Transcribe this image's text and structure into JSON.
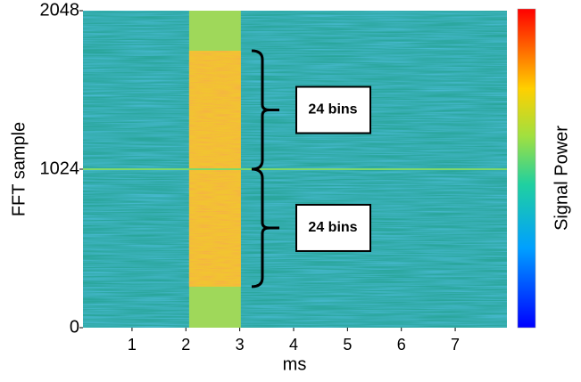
{
  "chart_data": {
    "type": "spectrogram",
    "x_label": "ms",
    "y_label": "FFT sample",
    "colorbar_label": "Signal Power",
    "xlim": [
      0.09,
      7.96
    ],
    "ylim": [
      0,
      2048
    ],
    "xticks": [
      1,
      2,
      3,
      4,
      5,
      6,
      7
    ],
    "yticks": [
      0,
      1024,
      2048
    ],
    "signal": {
      "x": [
        2.06,
        3.02
      ],
      "y": [
        265,
        1789
      ]
    },
    "carrier_line": 1024,
    "annotations": [
      {
        "text": "24 bins",
        "y": [
          1024,
          1789
        ]
      },
      {
        "text": "24 bins",
        "y": [
          265,
          1024
        ]
      }
    ]
  }
}
